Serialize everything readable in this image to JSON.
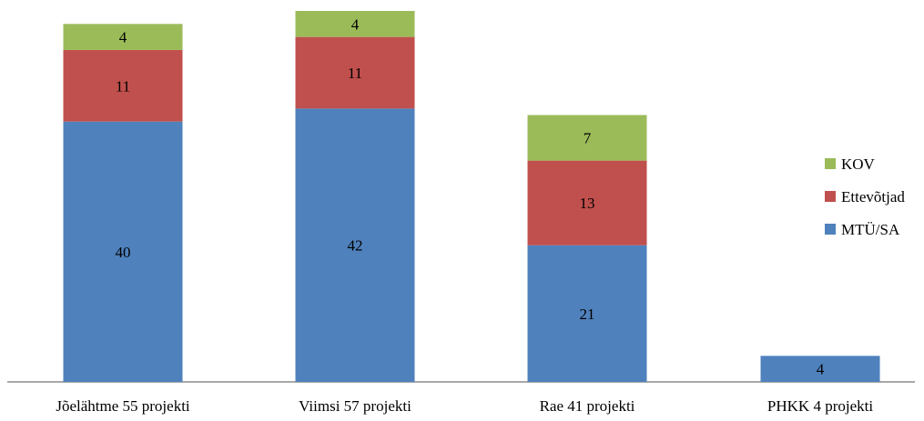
{
  "chart_data": {
    "type": "bar",
    "stacked": true,
    "categories": [
      "Jõelähtme 55 projekti",
      "Viimsi 57 projekti",
      "Rae 41 projekti",
      "PHKK 4 projekti"
    ],
    "series": [
      {
        "name": "MTÜ/SA",
        "color": "#4F81BD",
        "values": [
          40,
          42,
          21,
          4
        ]
      },
      {
        "name": "Ettevõtjad",
        "color": "#C0504D",
        "values": [
          11,
          11,
          13,
          0
        ]
      },
      {
        "name": "KOV",
        "color": "#9BBB59",
        "values": [
          4,
          4,
          7,
          0
        ]
      }
    ],
    "legend_position": "right",
    "grid": false,
    "ylim": [
      0,
      57
    ]
  }
}
